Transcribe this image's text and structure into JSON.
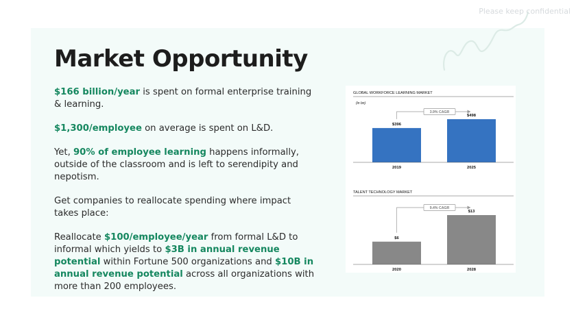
{
  "watermark": "Please keep confidential",
  "title": "Market Opportunity",
  "paragraphs": [
    {
      "hl": "$166 billion/year",
      "rest": " is spent on formal enterprise training & learning."
    },
    {
      "hl": "$1,300/employee",
      "rest": " on average is spent on L&D."
    },
    {
      "pre": "Yet, ",
      "hl": "90% of employee learning",
      "rest": " happens informally, outside of the classroom and is left to serendipity and nepotism."
    },
    {
      "plain": "Get companies to reallocate spending where impact takes place:"
    },
    {
      "p1": "Reallocate ",
      "h1": "$100/employee/year",
      "p2": " from formal L&D to informal which yields to ",
      "h2": "$3B in annual revenue potential",
      "p3": " within Fortune 500 organizations and ",
      "h3": "$10B in annual revenue potential",
      "p4": " across all organizations with more than 200 employees."
    }
  ],
  "chart_data": [
    {
      "type": "bar",
      "title": "GLOBAL WORKFORCE LEARNING MARKET",
      "subtitle": "(in bn)",
      "categories": [
        "2019",
        "2025"
      ],
      "values": [
        396,
        498
      ],
      "value_labels": [
        "$396",
        "$498"
      ],
      "annotation": "3.9% CAGR",
      "color": "#3573c1"
    },
    {
      "type": "bar",
      "title": "TALENT TECHNOLOGY MARKET",
      "subtitle": "",
      "categories": [
        "2020",
        "2028"
      ],
      "values": [
        6,
        13
      ],
      "value_labels": [
        "$6",
        "$13"
      ],
      "annotation": "9.4% CAGR",
      "color": "#888888"
    }
  ]
}
